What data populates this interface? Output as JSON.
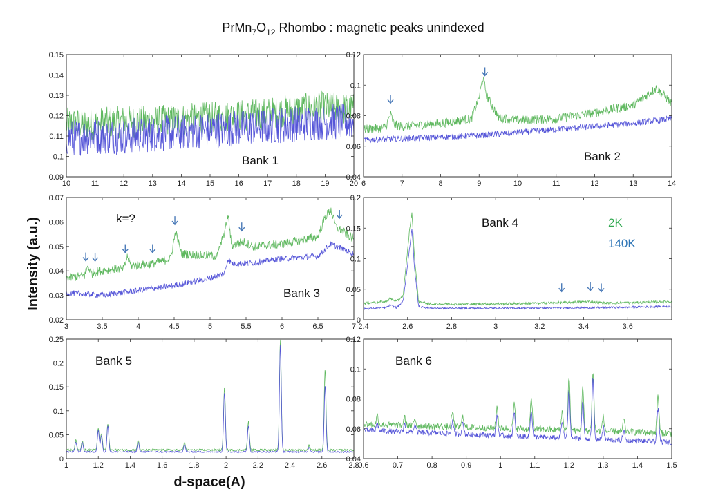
{
  "title": {
    "main": "PrMn",
    "sub1": "7",
    "mid": "O",
    "sub2": "12",
    "rest": " Rhombo : magnetic peaks unindexed"
  },
  "ylabel": "Intensity (a.u.)",
  "xlabel": "d-space(A)",
  "colors": {
    "cold": "#5fb85f",
    "warm": "#5555d8",
    "arrow": "#4a7ab8",
    "legend_cold": "#2fa84f",
    "legend_warm": "#2e75b6"
  },
  "chart_data": [
    {
      "type": "line",
      "label": "Bank 1",
      "xlim": [
        10,
        20
      ],
      "ylim": [
        0.09,
        0.15
      ],
      "xticks": [
        10,
        11,
        12,
        13,
        14,
        15,
        16,
        17,
        18,
        19,
        20
      ],
      "yticks": [
        0.09,
        0.1,
        0.11,
        0.12,
        0.13,
        0.14,
        0.15
      ],
      "series": [
        {
          "values_x": [
            10,
            11,
            12,
            13,
            14,
            15,
            16,
            17,
            18,
            19,
            20
          ],
          "values_y": [
            0.116,
            0.116,
            0.117,
            0.117,
            0.118,
            0.119,
            0.12,
            0.121,
            0.123,
            0.124,
            0.123
          ],
          "noise": 0.008
        },
        {
          "values_x": [
            10,
            11,
            12,
            13,
            14,
            15,
            16,
            17,
            18,
            19,
            20
          ],
          "values_y": [
            0.109,
            0.11,
            0.11,
            0.111,
            0.112,
            0.113,
            0.114,
            0.115,
            0.116,
            0.117,
            0.117
          ],
          "noise": 0.009
        }
      ],
      "arrows": []
    },
    {
      "type": "line",
      "label": "Bank 2",
      "xlim": [
        6,
        14
      ],
      "ylim": [
        0.04,
        0.12
      ],
      "xticks": [
        6,
        7,
        8,
        9,
        10,
        11,
        12,
        13,
        14
      ],
      "yticks": [
        0.04,
        0.06,
        0.08,
        0.1,
        0.12
      ],
      "series": [
        {
          "values_x": [
            6,
            6.5,
            6.6,
            6.7,
            6.8,
            7,
            8,
            8.8,
            9.0,
            9.1,
            9.2,
            9.5,
            10,
            11,
            12,
            13,
            13.6,
            14
          ],
          "values_y": [
            0.071,
            0.072,
            0.074,
            0.081,
            0.074,
            0.073,
            0.075,
            0.078,
            0.092,
            0.105,
            0.093,
            0.079,
            0.077,
            0.078,
            0.082,
            0.087,
            0.098,
            0.088
          ],
          "noise": 0.003
        },
        {
          "values_x": [
            6,
            7,
            8,
            9,
            10,
            11,
            12,
            13,
            14
          ],
          "values_y": [
            0.064,
            0.065,
            0.066,
            0.067,
            0.069,
            0.071,
            0.073,
            0.075,
            0.078
          ],
          "noise": 0.002
        }
      ],
      "arrows": [
        6.7,
        9.15
      ]
    },
    {
      "type": "line",
      "label": "Bank 3",
      "xlim": [
        3,
        7
      ],
      "ylim": [
        0.02,
        0.07
      ],
      "xticks": [
        3,
        3.5,
        4,
        4.5,
        5,
        5.5,
        6,
        6.5,
        7
      ],
      "yticks": [
        0.02,
        0.03,
        0.04,
        0.05,
        0.06,
        0.07
      ],
      "annotation": "k=?",
      "series": [
        {
          "values_x": [
            3,
            3.25,
            3.3,
            3.35,
            3.45,
            3.8,
            3.85,
            3.9,
            4.2,
            4.45,
            4.52,
            4.6,
            5.1,
            5.22,
            5.25,
            5.3,
            5.45,
            5.6,
            6,
            6.5,
            6.6,
            6.68,
            6.75,
            7
          ],
          "values_y": [
            0.037,
            0.038,
            0.042,
            0.039,
            0.04,
            0.041,
            0.046,
            0.042,
            0.043,
            0.045,
            0.056,
            0.047,
            0.046,
            0.058,
            0.063,
            0.05,
            0.052,
            0.05,
            0.051,
            0.054,
            0.062,
            0.065,
            0.058,
            0.053
          ],
          "noise": 0.0018
        },
        {
          "values_x": [
            3,
            3.5,
            4,
            4.5,
            5,
            5.2,
            5.25,
            5.3,
            5.5,
            6,
            6.5,
            6.68,
            7
          ],
          "values_y": [
            0.031,
            0.03,
            0.032,
            0.034,
            0.037,
            0.039,
            0.045,
            0.043,
            0.043,
            0.045,
            0.046,
            0.051,
            0.047
          ],
          "noise": 0.0012
        }
      ],
      "arrows": [
        3.27,
        3.4,
        3.82,
        4.2,
        4.51,
        5.44,
        6.8
      ]
    },
    {
      "type": "line",
      "label": "Bank 4",
      "xlim": [
        2.4,
        3.8
      ],
      "ylim": [
        0,
        0.2
      ],
      "xticks": [
        2.4,
        2.6,
        2.8,
        3,
        3.2,
        3.4,
        3.6
      ],
      "yticks": [
        0,
        0.05,
        0.1,
        0.15,
        0.2
      ],
      "legend": [
        "2K",
        "140K"
      ],
      "series": [
        {
          "values_x": [
            2.4,
            2.5,
            2.52,
            2.55,
            2.58,
            2.61,
            2.62,
            2.63,
            2.65,
            2.7,
            3,
            3.3,
            3.42,
            3.5,
            3.8
          ],
          "values_y": [
            0.027,
            0.03,
            0.035,
            0.03,
            0.04,
            0.15,
            0.175,
            0.11,
            0.03,
            0.026,
            0.026,
            0.028,
            0.03,
            0.027,
            0.03
          ],
          "noise": 0.002
        },
        {
          "values_x": [
            2.4,
            2.5,
            2.52,
            2.55,
            2.58,
            2.61,
            2.62,
            2.63,
            2.65,
            2.7,
            3,
            3.5,
            3.8
          ],
          "values_y": [
            0.018,
            0.02,
            0.024,
            0.02,
            0.03,
            0.12,
            0.15,
            0.09,
            0.022,
            0.019,
            0.019,
            0.02,
            0.022
          ],
          "noise": 0.0015
        }
      ],
      "arrows": [
        3.3,
        3.43,
        3.48
      ]
    },
    {
      "type": "line",
      "label": "Bank 5",
      "xlim": [
        1,
        2.8
      ],
      "ylim": [
        0,
        0.25
      ],
      "xticks": [
        1,
        1.2,
        1.4,
        1.6,
        1.8,
        2,
        2.2,
        2.4,
        2.6,
        2.8
      ],
      "yticks": [
        0,
        0.05,
        0.1,
        0.15,
        0.2,
        0.25
      ],
      "series": [
        {
          "peaks": [
            [
              1.06,
              0.02
            ],
            [
              1.1,
              0.02
            ],
            [
              1.2,
              0.045
            ],
            [
              1.22,
              0.035
            ],
            [
              1.26,
              0.055
            ],
            [
              1.45,
              0.02
            ],
            [
              1.74,
              0.015
            ],
            [
              1.99,
              0.13
            ],
            [
              2.14,
              0.06
            ],
            [
              2.34,
              0.23
            ],
            [
              2.52,
              0.01
            ],
            [
              2.62,
              0.17
            ]
          ],
          "base": 0.018,
          "noise": 0.002
        },
        {
          "peaks": [
            [
              1.06,
              0.02
            ],
            [
              1.1,
              0.02
            ],
            [
              1.2,
              0.045
            ],
            [
              1.22,
              0.035
            ],
            [
              1.26,
              0.055
            ],
            [
              1.45,
              0.02
            ],
            [
              1.74,
              0.015
            ],
            [
              1.99,
              0.125
            ],
            [
              2.14,
              0.055
            ],
            [
              2.34,
              0.225
            ],
            [
              2.52,
              0.01
            ],
            [
              2.62,
              0.14
            ]
          ],
          "base": 0.014,
          "noise": 0.0015
        }
      ],
      "arrows": []
    },
    {
      "type": "line",
      "label": "Bank 6",
      "xlim": [
        0.6,
        1.5
      ],
      "ylim": [
        0.04,
        0.12
      ],
      "xticks": [
        0.6,
        0.7,
        0.8,
        0.9,
        1,
        1.1,
        1.2,
        1.3,
        1.4,
        1.5
      ],
      "yticks": [
        0.04,
        0.06,
        0.08,
        0.1,
        0.12
      ],
      "series": [
        {
          "peaks": [
            [
              0.64,
              0.006
            ],
            [
              0.72,
              0.005
            ],
            [
              0.75,
              0.005
            ],
            [
              0.86,
              0.01
            ],
            [
              0.89,
              0.008
            ],
            [
              0.99,
              0.014
            ],
            [
              1.04,
              0.016
            ],
            [
              1.09,
              0.02
            ],
            [
              1.18,
              0.012
            ],
            [
              1.2,
              0.035
            ],
            [
              1.24,
              0.03
            ],
            [
              1.27,
              0.04
            ],
            [
              1.3,
              0.01
            ],
            [
              1.36,
              0.008
            ],
            [
              1.46,
              0.025
            ]
          ],
          "base": 0.063,
          "slope": -0.006,
          "noise": 0.0022
        },
        {
          "peaks": [
            [
              0.64,
              0.005
            ],
            [
              0.72,
              0.005
            ],
            [
              0.75,
              0.005
            ],
            [
              0.86,
              0.009
            ],
            [
              0.89,
              0.007
            ],
            [
              0.99,
              0.013
            ],
            [
              1.04,
              0.015
            ],
            [
              1.09,
              0.018
            ],
            [
              1.18,
              0.01
            ],
            [
              1.2,
              0.033
            ],
            [
              1.24,
              0.025
            ],
            [
              1.27,
              0.04
            ],
            [
              1.3,
              0.008
            ],
            [
              1.36,
              0.006
            ],
            [
              1.46,
              0.022
            ]
          ],
          "base": 0.059,
          "slope": -0.008,
          "noise": 0.0018
        }
      ],
      "arrows": []
    }
  ]
}
